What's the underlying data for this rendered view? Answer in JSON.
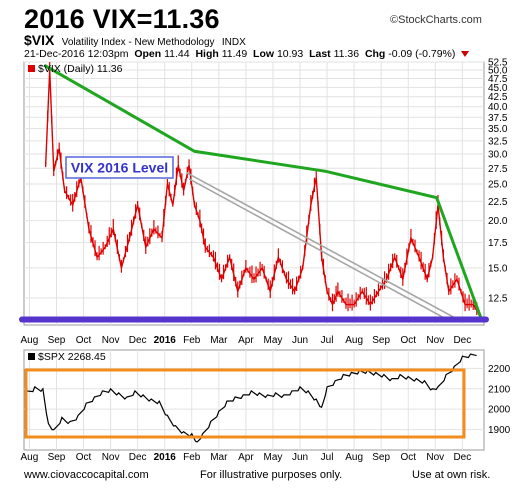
{
  "header": {
    "title": "2016 VIX=11.36",
    "brand": "©StockCharts.com",
    "symbol": "$VIX",
    "description": "Volatility Index - New Methodology",
    "exchange": "INDX",
    "date": "21-Dec-2016 12:03pm",
    "open_label": "Open",
    "open": "11.44",
    "high_label": "High",
    "high": "11.49",
    "low_label": "Low",
    "low": "10.93",
    "last_label": "Last",
    "last": "11.36",
    "chg_label": "Chg",
    "chg": "-0.09 (-0.79%)"
  },
  "footer": {
    "left": "www.ciovaccocapital.com",
    "center": "For illustrative purposes only.",
    "right": "Use at own risk."
  },
  "colors": {
    "vix_line": "#dd0000",
    "trend_line": "#1fa61f",
    "level_line": "#5533cc",
    "spx_line": "#000000",
    "box": "#f28c1c",
    "diag_line": "#a6a6a6"
  },
  "chart_data": [
    {
      "type": "line",
      "legend": "$VIX (Daily) 11.36",
      "annotation": "VIX 2016 Level",
      "y_scale": "log",
      "ylim": [
        10.6,
        52.5
      ],
      "y_ticks": [
        52.5,
        50.0,
        47.5,
        45.0,
        42.5,
        40.0,
        37.5,
        35.0,
        32.5,
        30.0,
        27.5,
        25.0,
        22.5,
        20.0,
        17.5,
        15.0,
        12.5
      ],
      "x_labels": [
        "Aug",
        "Sep",
        "Oct",
        "Nov",
        "Dec",
        "2016",
        "Feb",
        "Mar",
        "Apr",
        "May",
        "Jun",
        "Jul",
        "Aug",
        "Sep",
        "Oct",
        "Nov",
        "Dec"
      ],
      "x_label_pos": [
        0,
        1,
        2,
        3,
        4,
        5,
        6,
        7,
        8,
        9,
        10,
        11,
        12,
        13,
        14,
        15,
        16
      ],
      "x_range": [
        -0.2,
        16.8
      ],
      "series": [
        {
          "x": [
            0.6,
            0.75,
            0.9,
            1.1,
            1.3,
            1.6,
            1.9,
            2.2,
            2.5,
            2.8,
            3.1,
            3.4,
            3.7,
            4.0,
            4.3,
            4.6,
            4.9,
            5.1,
            5.3,
            5.5,
            5.7,
            5.9,
            6.1,
            6.3,
            6.5,
            6.8,
            7.1,
            7.4,
            7.7,
            8.0,
            8.3,
            8.6,
            8.9,
            9.2,
            9.5,
            9.8,
            10.1,
            10.4,
            10.6,
            10.8,
            11.0,
            11.2,
            11.4,
            11.7,
            12.0,
            12.3,
            12.6,
            12.9,
            13.2,
            13.5,
            13.8,
            14.1,
            14.4,
            14.7,
            14.9,
            15.1,
            15.3,
            15.5,
            15.8,
            16.1,
            16.4,
            16.6
          ],
          "y": [
            28,
            50,
            27,
            31,
            24,
            22,
            26,
            19,
            16,
            17,
            19,
            15,
            18,
            22,
            17,
            19,
            18,
            25,
            22,
            28,
            24,
            28,
            22,
            20,
            17,
            16,
            14,
            16,
            13,
            15,
            14,
            15,
            13,
            16,
            14,
            13,
            15,
            22,
            26,
            16,
            13,
            12,
            13,
            12,
            12,
            13,
            12,
            13,
            14,
            16,
            14,
            18,
            16,
            14,
            16,
            22,
            16,
            13,
            14,
            12,
            12,
            11.4
          ]
        }
      ],
      "trend_lines": [
        {
          "x": [
            0.55,
            6.1,
            10.95,
            15.05,
            16.7
          ],
          "y": [
            51.5,
            30.5,
            27.0,
            23.0,
            11.0
          ]
        },
        {
          "x": [
            5.8,
            15.8
          ],
          "y": [
            26.8,
            11.0
          ]
        },
        {
          "x": [
            5.9,
            15.6
          ],
          "y": [
            25.8,
            10.8
          ]
        }
      ],
      "level": 10.96
    },
    {
      "type": "line",
      "legend": "$SPX 2268.45",
      "y_ticks": [
        2200,
        2100,
        2000,
        1900
      ],
      "ylim": [
        1800,
        2290
      ],
      "x_labels": [
        "Aug",
        "Sep",
        "Oct",
        "Nov",
        "Dec",
        "2016",
        "Feb",
        "Mar",
        "Apr",
        "May",
        "Jun",
        "Jul",
        "Aug",
        "Sep",
        "Oct",
        "Nov",
        "Dec"
      ],
      "x_range": [
        -0.2,
        16.8
      ],
      "series": [
        {
          "x": [
            -0.15,
            0.2,
            0.5,
            0.7,
            0.9,
            1.2,
            1.5,
            1.8,
            2.1,
            2.4,
            2.7,
            3.0,
            3.3,
            3.6,
            3.9,
            4.2,
            4.5,
            4.8,
            5.1,
            5.4,
            5.7,
            6.0,
            6.2,
            6.4,
            6.7,
            7.0,
            7.3,
            7.6,
            7.9,
            8.2,
            8.5,
            8.8,
            9.1,
            9.4,
            9.7,
            10.0,
            10.3,
            10.6,
            10.8,
            11.0,
            11.3,
            11.6,
            11.9,
            12.2,
            12.5,
            12.8,
            13.1,
            13.4,
            13.7,
            14.0,
            14.3,
            14.6,
            14.9,
            15.1,
            15.4,
            15.7,
            16.0,
            16.3,
            16.6
          ],
          "y": [
            2080,
            2100,
            2090,
            1920,
            1890,
            1950,
            1930,
            1960,
            2020,
            2050,
            2080,
            2090,
            2070,
            2050,
            2080,
            2060,
            2040,
            2030,
            1960,
            1910,
            1880,
            1870,
            1830,
            1870,
            1930,
            1980,
            2030,
            2050,
            2060,
            2080,
            2070,
            2060,
            2070,
            2060,
            2080,
            2100,
            2080,
            2040,
            2000,
            2100,
            2130,
            2160,
            2170,
            2180,
            2180,
            2170,
            2160,
            2140,
            2160,
            2150,
            2140,
            2130,
            2090,
            2100,
            2160,
            2200,
            2250,
            2260,
            2270
          ]
        }
      ]
    }
  ]
}
